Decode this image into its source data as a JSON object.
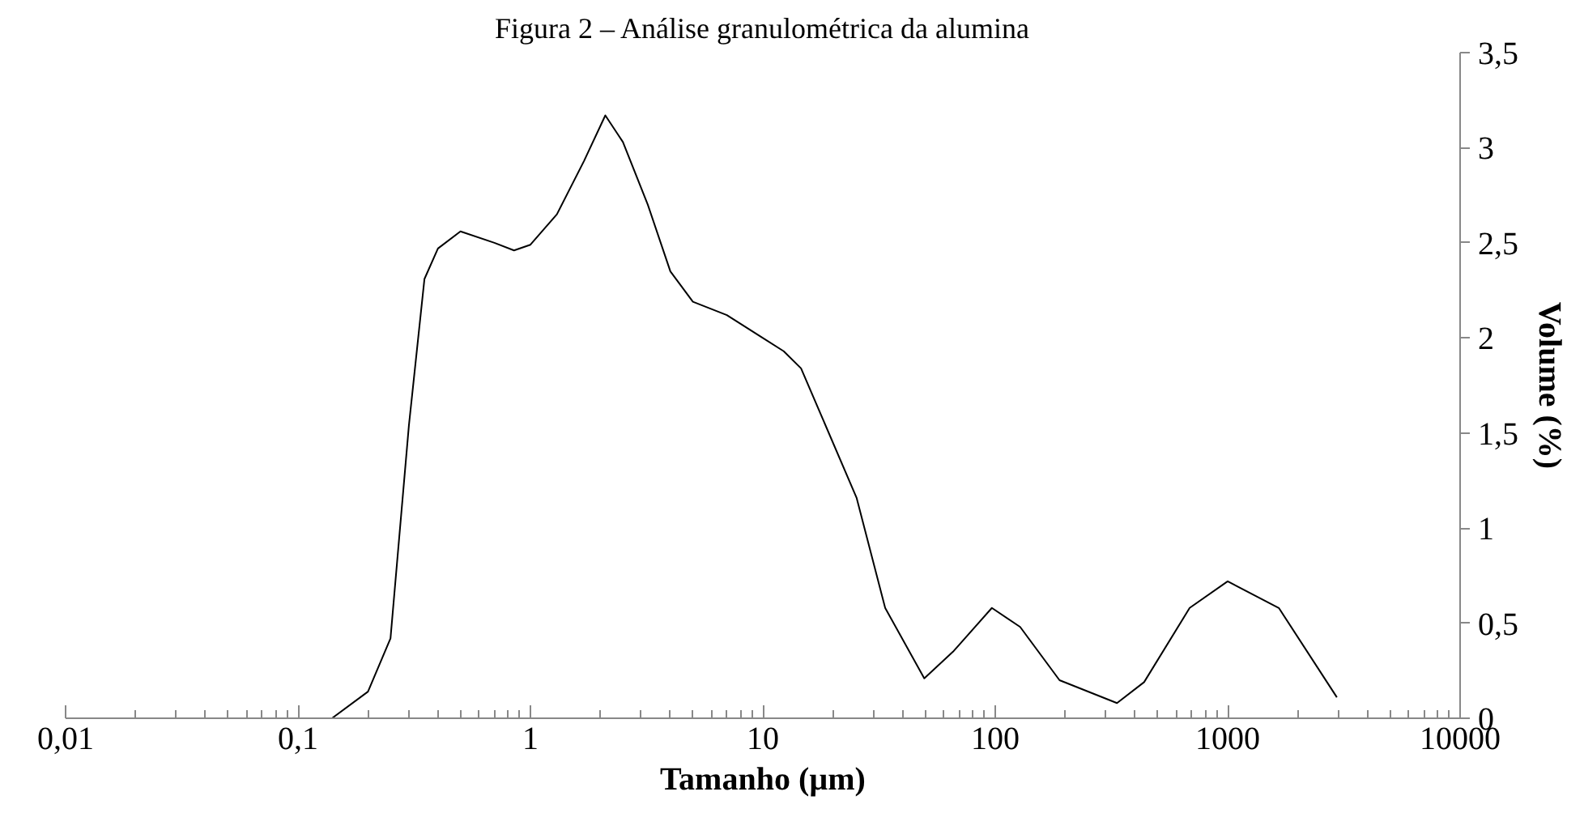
{
  "chart_data": {
    "type": "line",
    "title": "Figura 2 – Análise granulométrica da alumina",
    "xlabel": "Tamanho (µm)",
    "ylabel": "Volume (%)",
    "log": "x",
    "x": [
      0.01,
      0.14,
      0.2,
      0.25,
      0.3,
      0.35,
      0.4,
      0.5,
      0.7,
      0.85,
      1.0,
      1.3,
      1.7,
      2.1,
      2.5,
      3.2,
      4,
      5,
      7,
      10,
      12.3,
      14.6,
      25.3,
      33.6,
      49.5,
      65.8,
      96.7,
      128,
      189,
      334,
      437,
      686,
      1000,
      1660,
      2950
    ],
    "series": [
      {
        "color": "#000000",
        "values": [
          0,
          0,
          0.14,
          0.42,
          1.54,
          2.31,
          2.47,
          2.56,
          2.5,
          2.46,
          2.49,
          2.65,
          2.93,
          3.17,
          3.03,
          2.7,
          2.35,
          2.19,
          2.12,
          2.0,
          1.93,
          1.84,
          1.16,
          0.58,
          0.21,
          0.35,
          0.58,
          0.48,
          0.2,
          0.08,
          0.19,
          0.58,
          0.72,
          0.58,
          0.11
        ]
      }
    ],
    "xlim": [
      0.01,
      10000
    ],
    "xticks": [
      {
        "value": 0.01,
        "label": "0,01"
      },
      {
        "value": 0.1,
        "label": "0,1"
      },
      1,
      10,
      100,
      1000,
      10000
    ],
    "ylim": [
      0,
      3.5
    ],
    "yticks": [
      0,
      {
        "value": 0.5,
        "label": "0,5"
      },
      1,
      {
        "value": 1.5,
        "label": "1,5"
      },
      2,
      {
        "value": 2.5,
        "label": "2,5"
      },
      3,
      {
        "value": 3.5,
        "label": "3,5"
      }
    ],
    "grid": false,
    "marker": "none",
    "line_style": "solid"
  }
}
